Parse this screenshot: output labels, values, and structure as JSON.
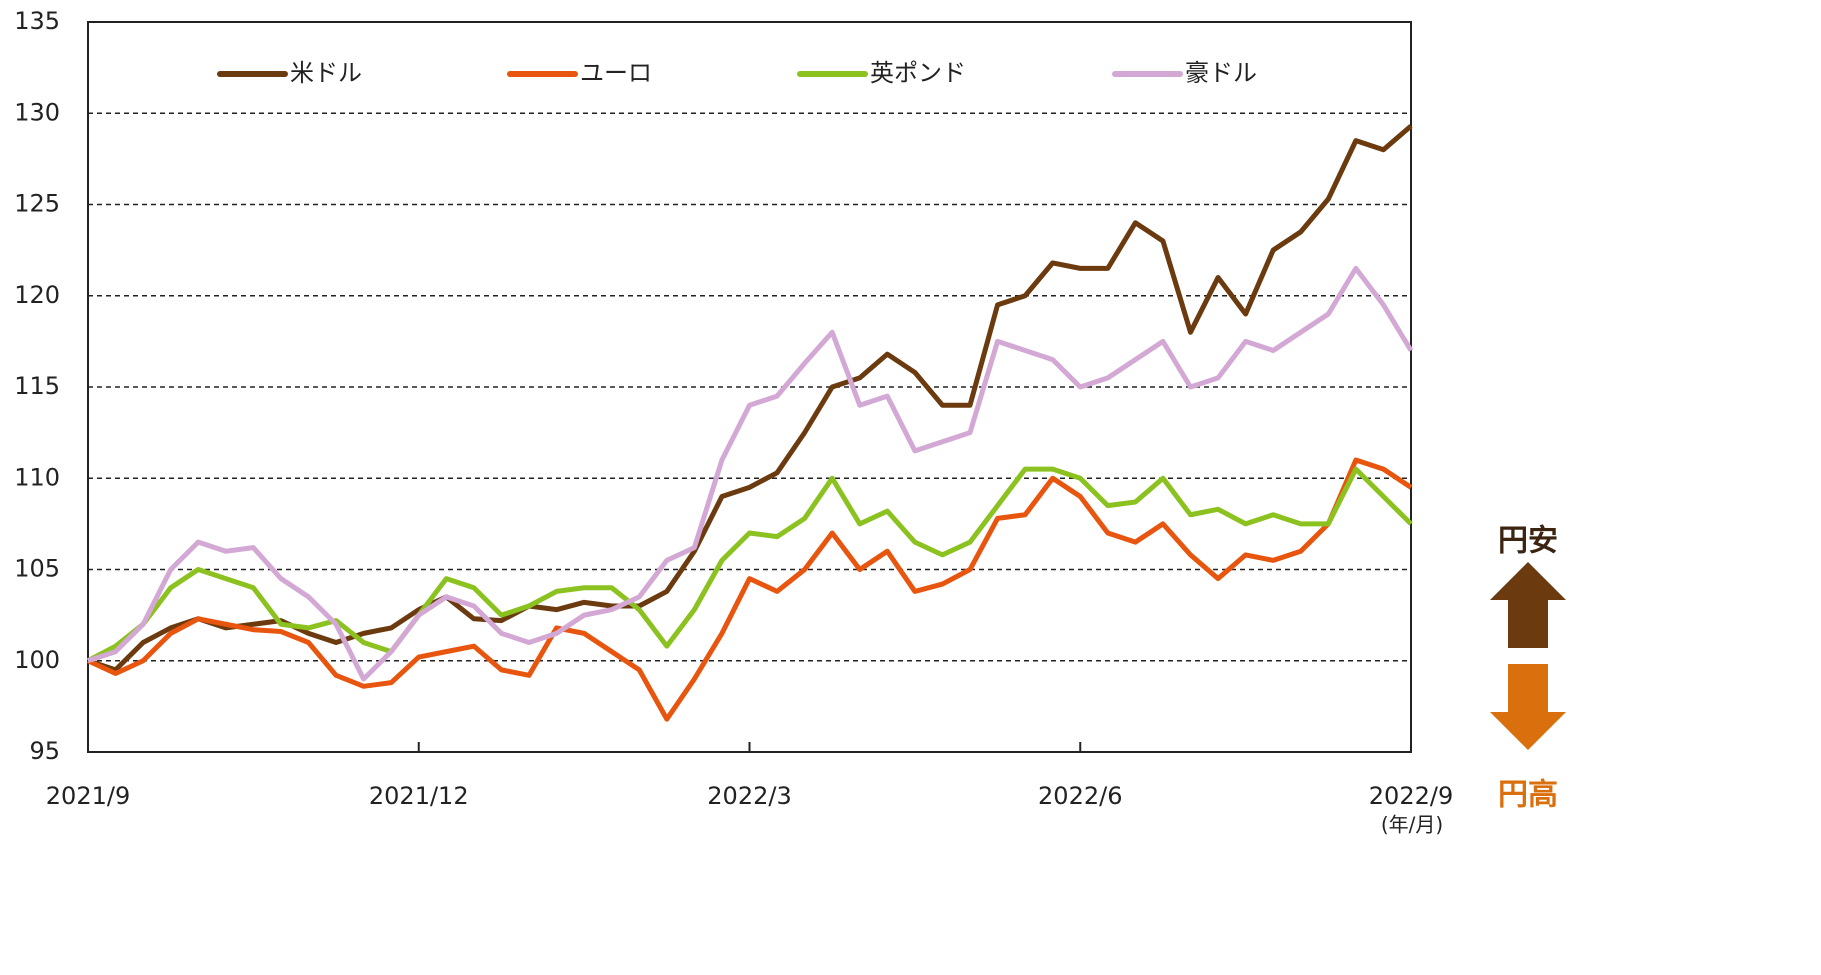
{
  "chart_data": {
    "type": "line",
    "x": [
      0,
      0.25,
      0.5,
      0.75,
      1,
      1.25,
      1.5,
      1.75,
      2,
      2.25,
      2.5,
      2.75,
      3,
      3.25,
      3.5,
      3.75,
      4,
      4.25,
      4.5,
      4.75,
      5,
      5.25,
      5.5,
      5.75,
      6,
      6.25,
      6.5,
      6.75,
      7,
      7.25,
      7.5,
      7.75,
      8,
      8.25,
      8.5,
      8.75,
      9,
      9.25,
      9.5,
      9.75,
      10,
      10.25,
      10.5,
      10.75,
      11,
      11.25,
      11.5,
      11.75,
      12
    ],
    "series": [
      {
        "name": "米ドル",
        "color": "#6b3a0f",
        "values": [
          100,
          99.5,
          101,
          101.8,
          102.3,
          101.8,
          102,
          102.2,
          101.5,
          101,
          101.5,
          101.8,
          102.8,
          103.5,
          102.3,
          102.2,
          103,
          102.8,
          103.2,
          103,
          103,
          103.8,
          106,
          109,
          109.5,
          110.3,
          112.5,
          115,
          115.5,
          116.8,
          115.8,
          114,
          114,
          119.5,
          120,
          121.8,
          121.5,
          121.5,
          124,
          123,
          118,
          121,
          119,
          122.5,
          123.5,
          125.3,
          128.5,
          128,
          129.3
        ]
      },
      {
        "name": "ユーロ",
        "color": "#e8550e",
        "values": [
          100,
          99.3,
          100,
          101.5,
          102.3,
          102,
          101.7,
          101.6,
          101,
          99.2,
          98.6,
          98.8,
          100.2,
          100.5,
          100.8,
          99.5,
          99.2,
          101.8,
          101.5,
          100.5,
          99.5,
          96.8,
          99,
          101.5,
          104.5,
          103.8,
          105,
          107,
          105,
          106,
          103.8,
          104.2,
          105,
          107.8,
          108,
          110,
          109,
          107,
          106.5,
          107.5,
          105.8,
          104.5,
          105.8,
          105.5,
          106,
          107.5,
          111,
          110.5,
          109.5
        ]
      },
      {
        "name": "英ポンド",
        "color": "#8cc21f",
        "values": [
          100,
          100.8,
          102,
          104,
          105,
          104.5,
          104,
          102,
          101.8,
          102.2,
          101,
          100.5,
          102.5,
          104.5,
          104,
          102.5,
          103,
          103.8,
          104,
          104,
          102.8,
          100.8,
          102.8,
          105.5,
          107,
          106.8,
          107.8,
          110,
          107.5,
          108.2,
          106.5,
          105.8,
          106.5,
          108.5,
          110.5,
          110.5,
          110,
          108.5,
          108.7,
          110,
          108,
          108.3,
          107.5,
          108,
          107.5,
          107.5,
          110.5,
          109,
          107.5
        ]
      },
      {
        "name": "豪ドル",
        "color": "#d3a8d5",
        "values": [
          100,
          100.5,
          102,
          105,
          106.5,
          106,
          106.2,
          104.5,
          103.5,
          102,
          99,
          100.5,
          102.5,
          103.5,
          103,
          101.5,
          101,
          101.5,
          102.5,
          102.8,
          103.5,
          105.5,
          106.2,
          111,
          114,
          114.5,
          116.3,
          118,
          114,
          114.5,
          111.5,
          112,
          112.5,
          117.5,
          117,
          116.5,
          115,
          115.5,
          116.5,
          117.5,
          115,
          115.5,
          117.5,
          117,
          118,
          119,
          121.5,
          119.5,
          117
        ]
      }
    ],
    "xlim": [
      0,
      12
    ],
    "xticks": [
      {
        "value": 0,
        "label": "2021/9"
      },
      {
        "value": 3,
        "label": "2021/12"
      },
      {
        "value": 6,
        "label": "2022/3"
      },
      {
        "value": 9,
        "label": "2022/6"
      },
      {
        "value": 12,
        "label": "2022/9"
      }
    ],
    "x_label": "(年/月)",
    "ylim": [
      95,
      135
    ],
    "yticks": [
      95,
      100,
      105,
      110,
      115,
      120,
      125,
      130,
      135
    ],
    "grid": true,
    "legend": "top",
    "annotations": [
      "円安",
      "円高"
    ]
  }
}
